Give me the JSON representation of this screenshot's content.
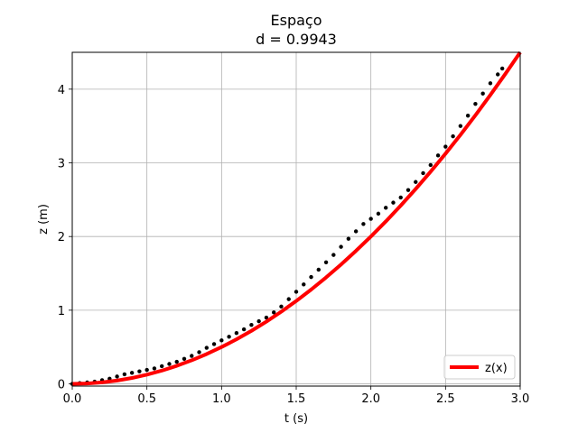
{
  "chart_data": {
    "type": "line",
    "title": "Espaço",
    "subtitle": "d = 0.9943",
    "xlabel": "t (s)",
    "ylabel": "z (m)",
    "xlim": [
      0.0,
      3.0
    ],
    "ylim": [
      -0.03,
      4.5
    ],
    "xticks": [
      "0.0",
      "0.5",
      "1.0",
      "1.5",
      "2.0",
      "2.5",
      "3.0"
    ],
    "yticks": [
      "0",
      "1",
      "2",
      "3",
      "4"
    ],
    "grid": true,
    "legend_position": "bottom-right",
    "series": [
      {
        "name": "z(x)",
        "kind": "line",
        "color": "#ff0000",
        "x": [
          0.0,
          0.1,
          0.2,
          0.3,
          0.4,
          0.5,
          0.6,
          0.7,
          0.8,
          0.9,
          1.0,
          1.1,
          1.2,
          1.3,
          1.4,
          1.5,
          1.6,
          1.7,
          1.8,
          1.9,
          2.0,
          2.1,
          2.2,
          2.3,
          2.4,
          2.5,
          2.6,
          2.7,
          2.8,
          2.9,
          3.0
        ],
        "y": [
          0.0,
          0.005,
          0.02,
          0.045,
          0.08,
          0.125,
          0.18,
          0.245,
          0.32,
          0.405,
          0.5,
          0.605,
          0.72,
          0.845,
          0.98,
          1.125,
          1.28,
          1.445,
          1.62,
          1.805,
          2.0,
          2.205,
          2.42,
          2.645,
          2.88,
          3.125,
          3.38,
          3.645,
          3.92,
          4.205,
          4.5
        ]
      },
      {
        "kind": "scatter",
        "color": "#000000",
        "x": [
          0.0,
          0.05,
          0.1,
          0.15,
          0.2,
          0.25,
          0.3,
          0.35,
          0.4,
          0.45,
          0.5,
          0.55,
          0.6,
          0.65,
          0.7,
          0.75,
          0.8,
          0.85,
          0.9,
          0.95,
          1.0,
          1.05,
          1.1,
          1.15,
          1.2,
          1.25,
          1.3,
          1.35,
          1.4,
          1.45,
          1.5,
          1.55,
          1.6,
          1.65,
          1.7,
          1.75,
          1.8,
          1.85,
          1.9,
          1.95,
          2.0,
          2.05,
          2.1,
          2.15,
          2.2,
          2.25,
          2.3,
          2.35,
          2.4,
          2.45,
          2.5,
          2.55,
          2.6,
          2.65,
          2.7,
          2.75,
          2.8,
          2.85,
          2.88
        ],
        "y": [
          0.0,
          0.01,
          0.02,
          0.03,
          0.05,
          0.07,
          0.1,
          0.13,
          0.15,
          0.17,
          0.19,
          0.21,
          0.24,
          0.27,
          0.3,
          0.34,
          0.38,
          0.43,
          0.49,
          0.54,
          0.59,
          0.64,
          0.69,
          0.74,
          0.8,
          0.85,
          0.9,
          0.97,
          1.05,
          1.15,
          1.25,
          1.35,
          1.45,
          1.55,
          1.65,
          1.75,
          1.86,
          1.97,
          2.07,
          2.17,
          2.24,
          2.31,
          2.39,
          2.46,
          2.53,
          2.63,
          2.74,
          2.86,
          2.97,
          3.1,
          3.22,
          3.36,
          3.5,
          3.64,
          3.8,
          3.94,
          4.08,
          4.2,
          4.28
        ]
      }
    ]
  }
}
